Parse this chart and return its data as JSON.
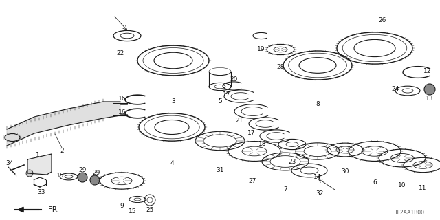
{
  "background_color": "#ffffff",
  "diagram_code": "TL2AA1B00",
  "line_color": "#1a1a1a",
  "label_fontsize": 6.5,
  "label_color": "#111111",
  "fig_w": 6.4,
  "fig_h": 3.2,
  "dpi": 100
}
